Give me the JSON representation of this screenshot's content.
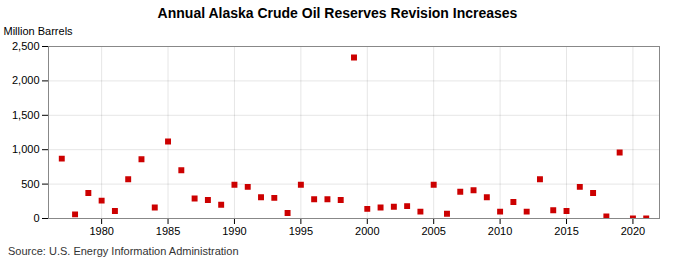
{
  "chart_data": {
    "type": "scatter",
    "title": "Annual Alaska Crude Oil Reserves Revision Increases",
    "ylabel": "Million Barrels",
    "source": "Source: U.S. Energy Information Administration",
    "x": [
      1977,
      1978,
      1979,
      1980,
      1981,
      1982,
      1983,
      1984,
      1985,
      1986,
      1987,
      1988,
      1989,
      1990,
      1991,
      1992,
      1993,
      1994,
      1995,
      1996,
      1997,
      1998,
      1999,
      2000,
      2001,
      2002,
      2003,
      2004,
      2005,
      2006,
      2007,
      2008,
      2009,
      2010,
      2011,
      2012,
      2013,
      2014,
      2015,
      2016,
      2017,
      2018,
      2019,
      2020,
      2021
    ],
    "values": [
      870,
      60,
      370,
      260,
      110,
      570,
      860,
      160,
      1120,
      700,
      290,
      270,
      200,
      490,
      460,
      310,
      300,
      80,
      490,
      280,
      280,
      270,
      2340,
      140,
      160,
      170,
      180,
      100,
      490,
      70,
      390,
      410,
      310,
      100,
      240,
      100,
      570,
      120,
      110,
      460,
      370,
      30,
      960,
      0,
      0
    ],
    "color": "#cc0000",
    "marker": "square",
    "xlim": [
      1976,
      2022
    ],
    "xticks": [
      1980,
      1985,
      1990,
      1995,
      2000,
      2005,
      2010,
      2015,
      2020
    ],
    "ylim": [
      0,
      2500
    ],
    "yticks": [
      0,
      500,
      {
        "value": 1000,
        "label": "1,000"
      },
      {
        "value": 1500,
        "label": "1,500"
      },
      {
        "value": 2000,
        "label": "2,000"
      },
      {
        "value": 2500,
        "label": "2,500"
      }
    ],
    "grid": true
  }
}
